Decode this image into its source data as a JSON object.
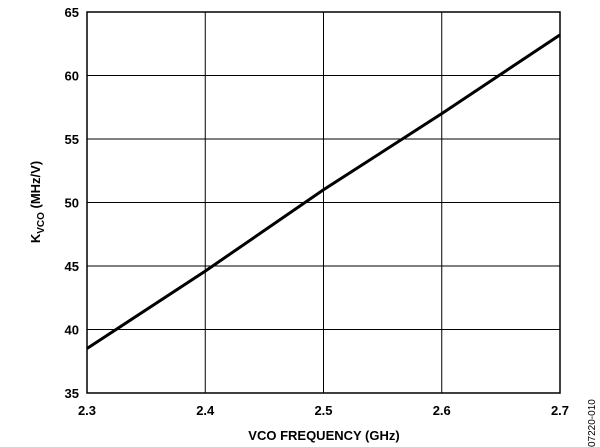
{
  "chart_data": {
    "type": "line",
    "title": "",
    "xlabel": "VCO FREQUENCY (GHz)",
    "ylabel": {
      "main": "K",
      "sub": "VCO",
      "rest": " (MHz/V)"
    },
    "xlim": [
      2.3,
      2.7
    ],
    "ylim": [
      35,
      65
    ],
    "x_ticks": [
      "2.3",
      "2.4",
      "2.5",
      "2.6",
      "2.7"
    ],
    "y_ticks": [
      "35",
      "40",
      "45",
      "50",
      "55",
      "60",
      "65"
    ],
    "grid": true,
    "series": [
      {
        "x": [
          2.3,
          2.4,
          2.5,
          2.6,
          2.7
        ],
        "y": [
          38.5,
          44.6,
          51.0,
          57.0,
          63.2
        ]
      }
    ],
    "figure_id": "07220-010",
    "colors": {
      "line": "#000000",
      "grid": "#000000",
      "background": "#ffffff"
    }
  }
}
